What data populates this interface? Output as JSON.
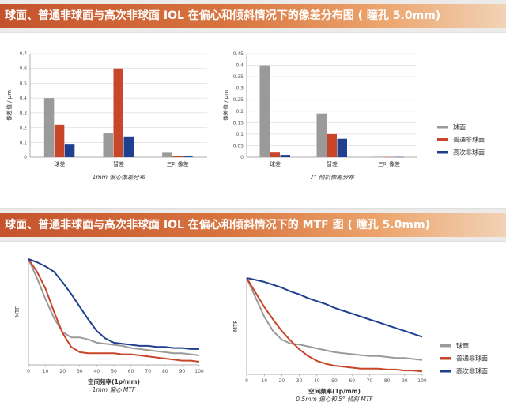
{
  "section1": {
    "title": "球面、普通非球面与高次非球面 IOL 在偏心和倾斜情况下的像差分布图 ( 瞳孔 5.0mm)"
  },
  "section2": {
    "title": "球面、普通非球面与高次非球面 IOL 在偏心和倾斜情况下的 MTF 图 ( 瞳孔 5.0mm)"
  },
  "colors": {
    "spherical": "#9a9a9a",
    "aspheric": "#c8462a",
    "high_order": "#1f3f8f"
  },
  "legend": {
    "items": [
      {
        "label": "球面",
        "color": "#9a9a9a"
      },
      {
        "label": "普通非球面",
        "color": "#c8462a"
      },
      {
        "label": "高次非球面",
        "color": "#1f3f8f"
      }
    ]
  },
  "chart_data": [
    {
      "type": "bar",
      "subtitle": "1mm 偏心像差分布",
      "ylabel": "像差值 / μm",
      "categories": [
        "球差",
        "彗差",
        "三叶像差"
      ],
      "ylim": [
        0,
        0.7
      ],
      "yticks": [
        "0",
        "0.1",
        "0.2",
        "0.3",
        "0.4",
        "0.5",
        "0.6",
        "0.7"
      ],
      "series": [
        {
          "name": "球面",
          "values": [
            0.4,
            0.16,
            0.03
          ]
        },
        {
          "name": "普通非球面",
          "values": [
            0.22,
            0.6,
            0.01
          ]
        },
        {
          "name": "高次非球面",
          "values": [
            0.09,
            0.14,
            0.005
          ]
        }
      ]
    },
    {
      "type": "bar",
      "subtitle": "7° 倾斜像差分布",
      "ylabel": "像差值 / μm",
      "categories": [
        "球差",
        "彗差",
        "三叶像差"
      ],
      "ylim": [
        0,
        0.45
      ],
      "yticks": [
        "0",
        "0.05",
        "0.1",
        "0.15",
        "0.2",
        "0.25",
        "0.3",
        "0.35",
        "0.4",
        "0.45"
      ],
      "series": [
        {
          "name": "球面",
          "values": [
            0.4,
            0.19,
            0.002
          ]
        },
        {
          "name": "普通非球面",
          "values": [
            0.02,
            0.1,
            0.001
          ]
        },
        {
          "name": "高次非球面",
          "values": [
            0.01,
            0.08,
            0.001
          ]
        }
      ]
    },
    {
      "type": "line",
      "subtitle": "1mm 偏心 MTF",
      "xlabel": "空间频率(1p/mm)",
      "ylabel": "MTF",
      "xlim": [
        0,
        100
      ],
      "ylim": [
        0,
        1
      ],
      "xticks": [
        "0",
        "10",
        "20",
        "30",
        "40",
        "50",
        "60",
        "70",
        "80",
        "90",
        "100"
      ],
      "x": [
        0,
        5,
        10,
        15,
        20,
        25,
        30,
        35,
        40,
        45,
        50,
        55,
        60,
        65,
        70,
        75,
        80,
        85,
        90,
        95,
        100
      ],
      "series": [
        {
          "name": "球面",
          "values": [
            1.0,
            0.82,
            0.62,
            0.44,
            0.31,
            0.26,
            0.26,
            0.24,
            0.21,
            0.2,
            0.19,
            0.18,
            0.16,
            0.15,
            0.14,
            0.13,
            0.12,
            0.11,
            0.11,
            0.1,
            0.09
          ]
        },
        {
          "name": "普通非球面",
          "values": [
            1.0,
            0.88,
            0.72,
            0.5,
            0.3,
            0.17,
            0.12,
            0.11,
            0.11,
            0.11,
            0.11,
            0.1,
            0.1,
            0.09,
            0.08,
            0.07,
            0.06,
            0.05,
            0.04,
            0.04,
            0.03
          ]
        },
        {
          "name": "高次非球面",
          "values": [
            1.0,
            0.97,
            0.93,
            0.88,
            0.78,
            0.67,
            0.55,
            0.43,
            0.32,
            0.25,
            0.21,
            0.2,
            0.19,
            0.18,
            0.18,
            0.17,
            0.17,
            0.16,
            0.16,
            0.15,
            0.15
          ]
        }
      ]
    },
    {
      "type": "line",
      "subtitle": "0.5mm 偏心和 5° 倾斜 MTF",
      "xlabel": "空间频率(1p/mm)",
      "ylabel": "MTF",
      "xlim": [
        0,
        100
      ],
      "ylim": [
        0,
        1
      ],
      "xticks": [
        "0",
        "10",
        "20",
        "30",
        "40",
        "50",
        "60",
        "70",
        "80",
        "90",
        "100"
      ],
      "x": [
        0,
        5,
        10,
        15,
        20,
        25,
        30,
        35,
        40,
        45,
        50,
        55,
        60,
        65,
        70,
        75,
        80,
        85,
        90,
        95,
        100
      ],
      "series": [
        {
          "name": "球面",
          "values": [
            1.0,
            0.8,
            0.6,
            0.45,
            0.36,
            0.32,
            0.31,
            0.29,
            0.27,
            0.25,
            0.23,
            0.22,
            0.21,
            0.2,
            0.19,
            0.19,
            0.18,
            0.17,
            0.17,
            0.16,
            0.15
          ]
        },
        {
          "name": "普通非球面",
          "values": [
            1.0,
            0.85,
            0.7,
            0.57,
            0.45,
            0.35,
            0.26,
            0.19,
            0.14,
            0.11,
            0.09,
            0.08,
            0.07,
            0.06,
            0.06,
            0.06,
            0.05,
            0.05,
            0.04,
            0.04,
            0.03
          ]
        },
        {
          "name": "高次非球面",
          "values": [
            1.0,
            0.98,
            0.96,
            0.93,
            0.9,
            0.86,
            0.83,
            0.79,
            0.76,
            0.73,
            0.69,
            0.66,
            0.63,
            0.6,
            0.57,
            0.54,
            0.51,
            0.48,
            0.45,
            0.42,
            0.39
          ]
        }
      ]
    }
  ]
}
